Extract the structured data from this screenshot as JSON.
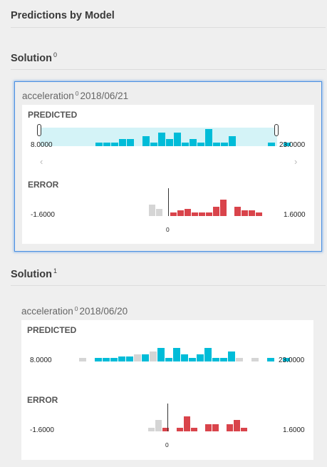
{
  "page_title": "Predictions by Model",
  "solutions": [
    {
      "title": "Solution",
      "index": "0",
      "selected": true,
      "card": {
        "feature": "acceleration",
        "feature_index": "0",
        "date": "2018/06/21",
        "predicted_label": "PREDICTED",
        "predicted_min": "8.0000",
        "predicted_max": "23.0000",
        "error_label": "ERROR",
        "error_min": "-1.6000",
        "error_max": "1.6000",
        "zero_label": "0",
        "has_nav": true,
        "prev_icon": "chevron-left-icon",
        "next_icon": "chevron-right-icon",
        "predicted_hist": [
          {
            "bin": 3,
            "count": 1,
            "color": "cyan"
          },
          {
            "bin": 4,
            "count": 1,
            "color": "cyan"
          },
          {
            "bin": 5,
            "count": 1,
            "color": "cyan"
          },
          {
            "bin": 6,
            "count": 2,
            "color": "cyan"
          },
          {
            "bin": 7,
            "count": 2,
            "color": "cyan"
          },
          {
            "bin": 9,
            "count": 3,
            "color": "cyan"
          },
          {
            "bin": 10,
            "count": 1,
            "color": "cyan"
          },
          {
            "bin": 11,
            "count": 4,
            "color": "cyan"
          },
          {
            "bin": 12,
            "count": 2,
            "color": "cyan"
          },
          {
            "bin": 13,
            "count": 4,
            "color": "cyan"
          },
          {
            "bin": 14,
            "count": 1,
            "color": "cyan"
          },
          {
            "bin": 15,
            "count": 2,
            "color": "cyan"
          },
          {
            "bin": 16,
            "count": 1,
            "color": "cyan"
          },
          {
            "bin": 17,
            "count": 5,
            "color": "cyan"
          },
          {
            "bin": 18,
            "count": 1,
            "color": "cyan"
          },
          {
            "bin": 19,
            "count": 1,
            "color": "cyan"
          },
          {
            "bin": 20,
            "count": 3,
            "color": "cyan"
          },
          {
            "bin": 25,
            "count": 1,
            "color": "cyan"
          },
          {
            "bin": 27,
            "count": 1,
            "color": "cyan"
          }
        ],
        "error_hist": [
          {
            "bin": 8,
            "count": 3,
            "color": "grey"
          },
          {
            "bin": 9,
            "count": 2,
            "color": "grey"
          },
          {
            "bin": 11,
            "count": 1,
            "color": "red"
          },
          {
            "bin": 12,
            "count": 1.5,
            "color": "red"
          },
          {
            "bin": 13,
            "count": 2,
            "color": "red"
          },
          {
            "bin": 14,
            "count": 1,
            "color": "red"
          },
          {
            "bin": 15,
            "count": 1,
            "color": "red"
          },
          {
            "bin": 16,
            "count": 1,
            "color": "red"
          },
          {
            "bin": 17,
            "count": 2.5,
            "color": "red"
          },
          {
            "bin": 18,
            "count": 4.5,
            "color": "red"
          },
          {
            "bin": 20,
            "count": 2.5,
            "color": "red"
          },
          {
            "bin": 21,
            "count": 1.5,
            "color": "red"
          },
          {
            "bin": 22,
            "count": 1.5,
            "color": "red"
          },
          {
            "bin": 23,
            "count": 1,
            "color": "red"
          }
        ]
      }
    },
    {
      "title": "Solution",
      "index": "1",
      "selected": false,
      "card": {
        "feature": "acceleration",
        "feature_index": "0",
        "date": "2018/06/20",
        "predicted_label": "PREDICTED",
        "predicted_min": "8.0000",
        "predicted_max": "23.0000",
        "error_label": "ERROR",
        "error_min": "-1.6000",
        "error_max": "1.6000",
        "zero_label": "0",
        "has_nav": false,
        "predicted_hist": [
          {
            "bin": 1,
            "count": 1,
            "color": "grey"
          },
          {
            "bin": 3,
            "count": 1,
            "color": "cyan"
          },
          {
            "bin": 4,
            "count": 1,
            "color": "cyan"
          },
          {
            "bin": 5,
            "count": 1,
            "color": "cyan"
          },
          {
            "bin": 6,
            "count": 1.5,
            "color": "cyan"
          },
          {
            "bin": 7,
            "count": 1.5,
            "color": "cyan"
          },
          {
            "bin": 8,
            "count": 2,
            "color": "grey"
          },
          {
            "bin": 9,
            "count": 2,
            "color": "cyan"
          },
          {
            "bin": 10,
            "count": 3,
            "color": "grey"
          },
          {
            "bin": 11,
            "count": 4,
            "color": "cyan"
          },
          {
            "bin": 12,
            "count": 1,
            "color": "cyan"
          },
          {
            "bin": 13,
            "count": 4,
            "color": "cyan"
          },
          {
            "bin": 14,
            "count": 2,
            "color": "cyan"
          },
          {
            "bin": 15,
            "count": 1,
            "color": "cyan"
          },
          {
            "bin": 16,
            "count": 2,
            "color": "cyan"
          },
          {
            "bin": 17,
            "count": 4,
            "color": "cyan"
          },
          {
            "bin": 18,
            "count": 1,
            "color": "cyan"
          },
          {
            "bin": 19,
            "count": 1,
            "color": "cyan"
          },
          {
            "bin": 20,
            "count": 3,
            "color": "cyan"
          },
          {
            "bin": 21,
            "count": 1,
            "color": "grey"
          },
          {
            "bin": 23,
            "count": 1,
            "color": "grey"
          },
          {
            "bin": 25,
            "count": 1,
            "color": "cyan"
          },
          {
            "bin": 27,
            "count": 1,
            "color": "cyan"
          }
        ],
        "error_hist": [
          {
            "bin": 8,
            "count": 1,
            "color": "grey"
          },
          {
            "bin": 9,
            "count": 3,
            "color": "grey"
          },
          {
            "bin": 10,
            "count": 1,
            "color": "red"
          },
          {
            "bin": 12,
            "count": 1,
            "color": "red"
          },
          {
            "bin": 13,
            "count": 4,
            "color": "red"
          },
          {
            "bin": 14,
            "count": 1,
            "color": "red"
          },
          {
            "bin": 16,
            "count": 2,
            "color": "red"
          },
          {
            "bin": 17,
            "count": 2,
            "color": "red"
          },
          {
            "bin": 19,
            "count": 2,
            "color": "red"
          },
          {
            "bin": 20,
            "count": 3,
            "color": "red"
          },
          {
            "bin": 21,
            "count": 1,
            "color": "red"
          }
        ]
      }
    }
  ],
  "colors": {
    "cyan": "#00bcd8",
    "red": "#d9444b",
    "grey": "#d5d5d5",
    "range_band": "#d4f3f7",
    "selected_border": "#4a90e2"
  }
}
